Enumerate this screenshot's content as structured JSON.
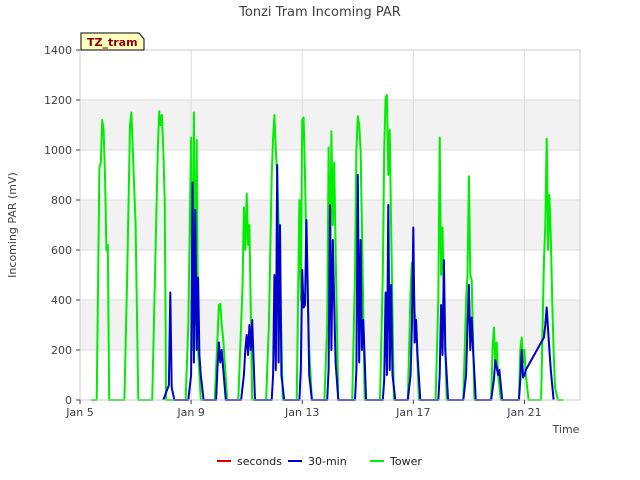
{
  "chart_data": {
    "type": "line",
    "title": "Tonzi Tram Incoming PAR",
    "xlabel": "Time",
    "ylabel": "Incoming PAR (mV)",
    "badge": "TZ_tram",
    "xlim": [
      5,
      23
    ],
    "ylim": [
      0,
      1400
    ],
    "yticks": [
      0,
      200,
      400,
      600,
      800,
      1000,
      1200,
      1400
    ],
    "xticks": [
      {
        "label": "Jan 5",
        "day": 5
      },
      {
        "label": "Jan 9",
        "day": 9
      },
      {
        "label": "Jan 13",
        "day": 13
      },
      {
        "label": "Jan 17",
        "day": 17
      },
      {
        "label": "Jan 21",
        "day": 21
      }
    ],
    "grid": true,
    "legend_position": "bottom",
    "series": [
      {
        "name": "seconds",
        "color": "#dd0000",
        "points": []
      },
      {
        "name": "30-min",
        "color": "#0000cc",
        "points": [
          [
            8.0,
            0
          ],
          [
            8.2,
            60
          ],
          [
            8.25,
            430
          ],
          [
            8.3,
            50
          ],
          [
            8.4,
            0
          ],
          [
            8.9,
            0
          ],
          [
            9.0,
            100
          ],
          [
            9.05,
            870
          ],
          [
            9.1,
            150
          ],
          [
            9.15,
            760
          ],
          [
            9.2,
            200
          ],
          [
            9.25,
            490
          ],
          [
            9.3,
            180
          ],
          [
            9.35,
            100
          ],
          [
            9.45,
            0
          ],
          [
            9.9,
            0
          ],
          [
            9.95,
            130
          ],
          [
            10.0,
            230
          ],
          [
            10.05,
            150
          ],
          [
            10.1,
            200
          ],
          [
            10.15,
            130
          ],
          [
            10.25,
            0
          ],
          [
            10.8,
            0
          ],
          [
            10.9,
            100
          ],
          [
            10.95,
            200
          ],
          [
            11.0,
            260
          ],
          [
            11.05,
            180
          ],
          [
            11.1,
            300
          ],
          [
            11.15,
            200
          ],
          [
            11.2,
            320
          ],
          [
            11.3,
            0
          ],
          [
            11.9,
            0
          ],
          [
            11.95,
            100
          ],
          [
            12.0,
            500
          ],
          [
            12.05,
            120
          ],
          [
            12.1,
            940
          ],
          [
            12.15,
            150
          ],
          [
            12.2,
            700
          ],
          [
            12.25,
            100
          ],
          [
            12.35,
            0
          ],
          [
            12.9,
            0
          ],
          [
            12.95,
            120
          ],
          [
            13.0,
            520
          ],
          [
            13.05,
            370
          ],
          [
            13.1,
            380
          ],
          [
            13.15,
            720
          ],
          [
            13.2,
            440
          ],
          [
            13.25,
            100
          ],
          [
            13.35,
            0
          ],
          [
            13.9,
            0
          ],
          [
            13.95,
            120
          ],
          [
            14.0,
            780
          ],
          [
            14.05,
            200
          ],
          [
            14.1,
            640
          ],
          [
            14.15,
            380
          ],
          [
            14.2,
            150
          ],
          [
            14.3,
            0
          ],
          [
            14.9,
            0
          ],
          [
            14.95,
            120
          ],
          [
            15.0,
            900
          ],
          [
            15.05,
            150
          ],
          [
            15.1,
            640
          ],
          [
            15.15,
            200
          ],
          [
            15.2,
            320
          ],
          [
            15.3,
            0
          ],
          [
            15.9,
            0
          ],
          [
            15.95,
            80
          ],
          [
            16.0,
            430
          ],
          [
            16.05,
            100
          ],
          [
            16.1,
            780
          ],
          [
            16.15,
            120
          ],
          [
            16.2,
            460
          ],
          [
            16.25,
            100
          ],
          [
            16.35,
            0
          ],
          [
            16.8,
            0
          ],
          [
            16.9,
            100
          ],
          [
            16.95,
            300
          ],
          [
            17.0,
            690
          ],
          [
            17.05,
            230
          ],
          [
            17.1,
            320
          ],
          [
            17.15,
            180
          ],
          [
            17.25,
            0
          ],
          [
            17.9,
            0
          ],
          [
            17.95,
            100
          ],
          [
            18.0,
            380
          ],
          [
            18.05,
            180
          ],
          [
            18.1,
            560
          ],
          [
            18.15,
            200
          ],
          [
            18.25,
            0
          ],
          [
            18.8,
            0
          ],
          [
            18.9,
            100
          ],
          [
            18.95,
            300
          ],
          [
            19.0,
            460
          ],
          [
            19.05,
            200
          ],
          [
            19.1,
            330
          ],
          [
            19.15,
            200
          ],
          [
            19.25,
            0
          ],
          [
            19.8,
            0
          ],
          [
            19.9,
            80
          ],
          [
            19.95,
            160
          ],
          [
            20.0,
            130
          ],
          [
            20.05,
            100
          ],
          [
            20.1,
            120
          ],
          [
            20.2,
            0
          ],
          [
            20.8,
            0
          ],
          [
            20.85,
            80
          ],
          [
            20.9,
            200
          ],
          [
            20.95,
            90
          ],
          [
            21.0,
            100
          ],
          [
            21.05,
            120
          ],
          [
            21.7,
            250
          ],
          [
            21.75,
            300
          ],
          [
            21.8,
            370
          ],
          [
            21.85,
            280
          ],
          [
            21.9,
            200
          ],
          [
            21.95,
            120
          ],
          [
            22.05,
            0
          ]
        ]
      },
      {
        "name": "Tower",
        "color": "#00ee00",
        "points": [
          [
            5.4,
            0
          ],
          [
            5.6,
            0
          ],
          [
            5.7,
            930
          ],
          [
            5.75,
            950
          ],
          [
            5.8,
            1120
          ],
          [
            5.85,
            1080
          ],
          [
            5.9,
            900
          ],
          [
            5.95,
            600
          ],
          [
            6.0,
            620
          ],
          [
            6.05,
            0
          ],
          [
            6.6,
            0
          ],
          [
            6.7,
            500
          ],
          [
            6.8,
            1100
          ],
          [
            6.85,
            1150
          ],
          [
            6.9,
            1000
          ],
          [
            7.0,
            700
          ],
          [
            7.1,
            0
          ],
          [
            7.6,
            0
          ],
          [
            7.7,
            500
          ],
          [
            7.8,
            1000
          ],
          [
            7.85,
            1155
          ],
          [
            7.9,
            1100
          ],
          [
            7.95,
            1140
          ],
          [
            8.0,
            1000
          ],
          [
            8.05,
            800
          ],
          [
            8.1,
            0
          ],
          [
            8.8,
            0
          ],
          [
            8.9,
            300
          ],
          [
            9.0,
            1050
          ],
          [
            9.05,
            200
          ],
          [
            9.1,
            1150
          ],
          [
            9.15,
            300
          ],
          [
            9.2,
            1040
          ],
          [
            9.25,
            200
          ],
          [
            9.35,
            0
          ],
          [
            9.85,
            0
          ],
          [
            9.95,
            250
          ],
          [
            10.0,
            380
          ],
          [
            10.05,
            385
          ],
          [
            10.1,
            300
          ],
          [
            10.15,
            250
          ],
          [
            10.3,
            0
          ],
          [
            10.7,
            0
          ],
          [
            10.8,
            300
          ],
          [
            10.85,
            450
          ],
          [
            10.9,
            770
          ],
          [
            10.95,
            600
          ],
          [
            11.0,
            825
          ],
          [
            11.05,
            620
          ],
          [
            11.1,
            700
          ],
          [
            11.2,
            0
          ],
          [
            11.7,
            0
          ],
          [
            11.8,
            300
          ],
          [
            11.9,
            900
          ],
          [
            11.95,
            1050
          ],
          [
            12.0,
            1140
          ],
          [
            12.05,
            1000
          ],
          [
            12.1,
            900
          ],
          [
            12.2,
            500
          ],
          [
            12.3,
            0
          ],
          [
            12.8,
            0
          ],
          [
            12.9,
            800
          ],
          [
            12.95,
            400
          ],
          [
            13.0,
            1120
          ],
          [
            13.05,
            1130
          ],
          [
            13.1,
            900
          ],
          [
            13.15,
            600
          ],
          [
            13.25,
            200
          ],
          [
            13.35,
            0
          ],
          [
            13.8,
            0
          ],
          [
            13.9,
            300
          ],
          [
            13.95,
            1010
          ],
          [
            14.0,
            500
          ],
          [
            14.05,
            1075
          ],
          [
            14.1,
            700
          ],
          [
            14.15,
            950
          ],
          [
            14.2,
            600
          ],
          [
            14.3,
            0
          ],
          [
            14.8,
            0
          ],
          [
            14.9,
            500
          ],
          [
            14.95,
            1000
          ],
          [
            15.0,
            1135
          ],
          [
            15.05,
            1100
          ],
          [
            15.1,
            1000
          ],
          [
            15.15,
            700
          ],
          [
            15.25,
            0
          ],
          [
            15.8,
            0
          ],
          [
            15.9,
            500
          ],
          [
            15.95,
            1000
          ],
          [
            16.0,
            1210
          ],
          [
            16.05,
            1220
          ],
          [
            16.1,
            900
          ],
          [
            16.15,
            1080
          ],
          [
            16.2,
            700
          ],
          [
            16.3,
            0
          ],
          [
            16.8,
            0
          ],
          [
            16.9,
            440
          ],
          [
            16.95,
            550
          ],
          [
            17.0,
            500
          ],
          [
            17.05,
            350
          ],
          [
            17.1,
            300
          ],
          [
            17.2,
            0
          ],
          [
            17.8,
            0
          ],
          [
            17.9,
            400
          ],
          [
            17.95,
            1050
          ],
          [
            18.0,
            500
          ],
          [
            18.05,
            690
          ],
          [
            18.1,
            400
          ],
          [
            18.2,
            0
          ],
          [
            18.8,
            0
          ],
          [
            18.9,
            400
          ],
          [
            18.95,
            500
          ],
          [
            19.0,
            895
          ],
          [
            19.05,
            500
          ],
          [
            19.1,
            480
          ],
          [
            19.2,
            0
          ],
          [
            19.8,
            0
          ],
          [
            19.85,
            200
          ],
          [
            19.9,
            290
          ],
          [
            19.95,
            150
          ],
          [
            20.0,
            230
          ],
          [
            20.05,
            100
          ],
          [
            20.15,
            0
          ],
          [
            20.8,
            0
          ],
          [
            20.85,
            200
          ],
          [
            20.9,
            250
          ],
          [
            20.95,
            150
          ],
          [
            21.0,
            200
          ],
          [
            21.05,
            100
          ],
          [
            21.15,
            0
          ],
          [
            21.6,
            0
          ],
          [
            21.7,
            550
          ],
          [
            21.75,
            700
          ],
          [
            21.8,
            1045
          ],
          [
            21.85,
            600
          ],
          [
            21.9,
            820
          ],
          [
            21.95,
            650
          ],
          [
            22.0,
            400
          ],
          [
            22.05,
            200
          ],
          [
            22.1,
            50
          ],
          [
            22.2,
            0
          ],
          [
            22.4,
            0
          ]
        ]
      }
    ]
  }
}
